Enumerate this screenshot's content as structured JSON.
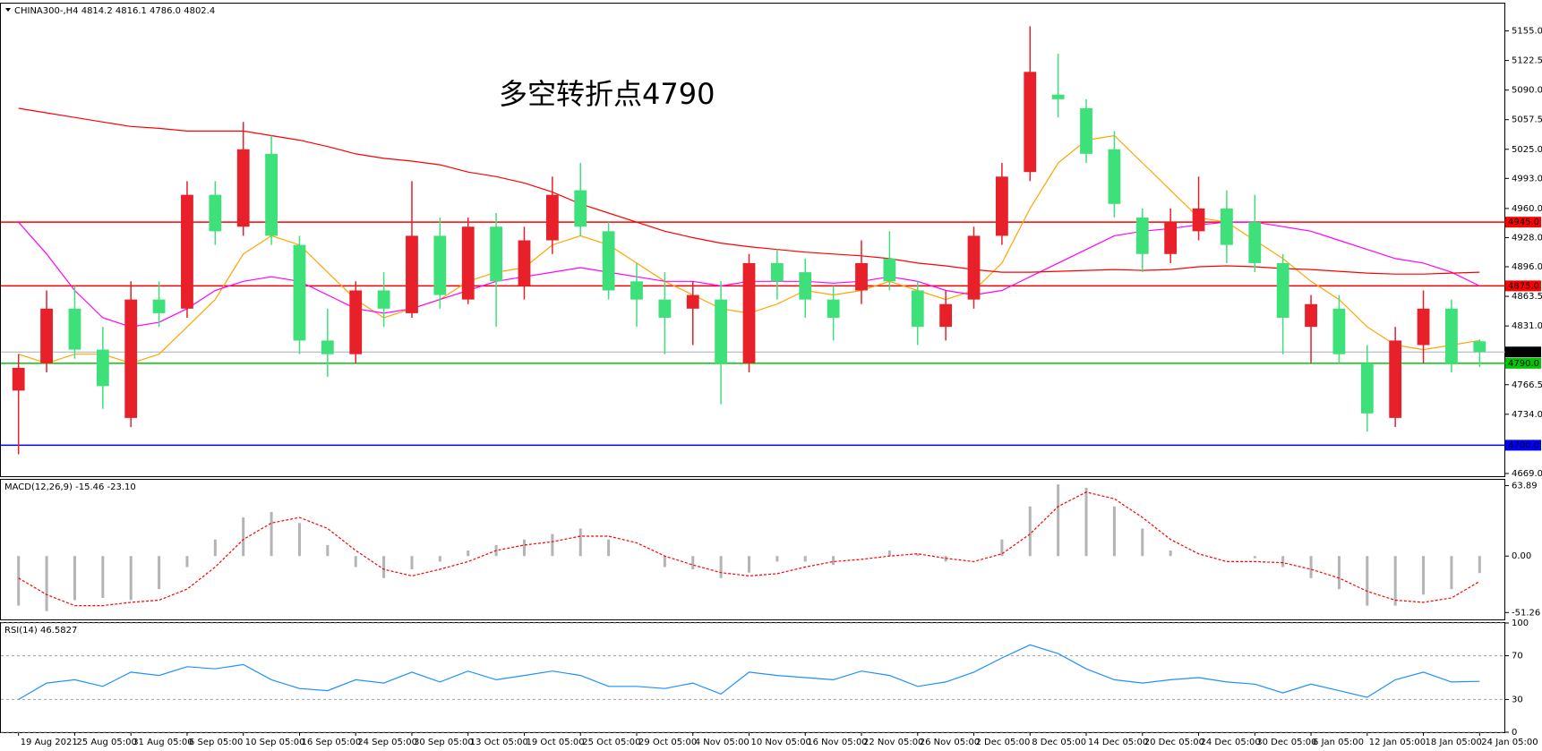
{
  "chart_data": [
    {
      "type": "candlestick",
      "title": "CHINA300-,H4  4814.2 4816.1 4786.0 4802.4",
      "annotation": "多空转折点4790",
      "annotation_color": "#e0201f",
      "up_color": "#e8202a",
      "down_color": "#3ee07a",
      "categories": [
        "19 Aug 2021",
        null,
        "25 Aug 05:00",
        null,
        "31 Aug 05:00",
        null,
        "6 Sep 05:00",
        null,
        "10 Sep 05:00",
        null,
        "16 Sep 05:00",
        null,
        "24 Sep 05:00",
        null,
        "30 Sep 05:00",
        null,
        "13 Oct 05:00",
        null,
        "19 Oct 05:00",
        null,
        "25 Oct 05:00",
        null,
        "29 Oct 05:00",
        null,
        "4 Nov 05:00",
        null,
        "10 Nov 05:00",
        null,
        "16 Nov 05:00",
        null,
        "22 Nov 05:00",
        null,
        "26 Nov 05:00",
        null,
        "2 Dec 05:00",
        null,
        "8 Dec 05:00",
        null,
        "14 Dec 05:00",
        null,
        "20 Dec 05:00",
        null,
        "24 Dec 05:00",
        null,
        "30 Dec 05:00",
        null,
        "6 Jan 05:00",
        null,
        "12 Jan 05:00",
        null,
        "18 Jan 05:00",
        null,
        "24 Jan 05:00"
      ],
      "ohlc": [
        [
          4760,
          4800,
          4690,
          4785
        ],
        [
          4790,
          4870,
          4780,
          4850
        ],
        [
          4850,
          4875,
          4795,
          4805
        ],
        [
          4805,
          4830,
          4740,
          4765
        ],
        [
          4730,
          4880,
          4720,
          4860
        ],
        [
          4860,
          4880,
          4830,
          4845
        ],
        [
          4850,
          4990,
          4840,
          4975
        ],
        [
          4975,
          4990,
          4920,
          4935
        ],
        [
          4940,
          5055,
          4930,
          5025
        ],
        [
          5020,
          5040,
          4920,
          4930
        ],
        [
          4920,
          4930,
          4800,
          4815
        ],
        [
          4815,
          4850,
          4775,
          4800
        ],
        [
          4800,
          4880,
          4790,
          4870
        ],
        [
          4870,
          4890,
          4830,
          4850
        ],
        [
          4845,
          4990,
          4840,
          4930
        ],
        [
          4930,
          4950,
          4850,
          4865
        ],
        [
          4860,
          4950,
          4855,
          4940
        ],
        [
          4940,
          4955,
          4830,
          4880
        ],
        [
          4875,
          4940,
          4860,
          4925
        ],
        [
          4925,
          4995,
          4910,
          4975
        ],
        [
          4980,
          5010,
          4930,
          4940
        ],
        [
          4935,
          4945,
          4860,
          4870
        ],
        [
          4880,
          4900,
          4830,
          4860
        ],
        [
          4860,
          4890,
          4800,
          4840
        ],
        [
          4850,
          4880,
          4810,
          4865
        ],
        [
          4860,
          4880,
          4745,
          4790
        ],
        [
          4790,
          4910,
          4780,
          4900
        ],
        [
          4900,
          4915,
          4860,
          4880
        ],
        [
          4890,
          4905,
          4840,
          4860
        ],
        [
          4860,
          4875,
          4815,
          4840
        ],
        [
          4870,
          4925,
          4855,
          4900
        ],
        [
          4905,
          4935,
          4870,
          4880
        ],
        [
          4870,
          4880,
          4810,
          4830
        ],
        [
          4830,
          4870,
          4815,
          4855
        ],
        [
          4860,
          4940,
          4850,
          4930
        ],
        [
          4930,
          5010,
          4920,
          4995
        ],
        [
          5000,
          5160,
          4990,
          5110
        ],
        [
          5085,
          5130,
          5060,
          5080
        ],
        [
          5070,
          5080,
          5010,
          5020
        ],
        [
          5025,
          5045,
          4950,
          4965
        ],
        [
          4950,
          4960,
          4890,
          4910
        ],
        [
          4910,
          4960,
          4900,
          4945
        ],
        [
          4935,
          4995,
          4925,
          4960
        ],
        [
          4960,
          4980,
          4900,
          4920
        ],
        [
          4945,
          4975,
          4890,
          4900
        ],
        [
          4900,
          4910,
          4800,
          4840
        ],
        [
          4830,
          4865,
          4790,
          4855
        ],
        [
          4850,
          4865,
          4790,
          4800
        ],
        [
          4790,
          4810,
          4715,
          4735
        ],
        [
          4730,
          4830,
          4720,
          4815
        ],
        [
          4810,
          4870,
          4790,
          4850
        ],
        [
          4850,
          4860,
          4780,
          4790
        ],
        [
          4814.2,
          4816.1,
          4786.0,
          4802.4
        ]
      ],
      "series": [
        {
          "color": "#ffa500",
          "values": [
            4800,
            4790,
            4800,
            4800,
            4790,
            4800,
            4830,
            4860,
            4910,
            4930,
            4920,
            4890,
            4860,
            4840,
            4850,
            4860,
            4880,
            4890,
            4895,
            4920,
            4930,
            4920,
            4900,
            4880,
            4865,
            4850,
            4845,
            4855,
            4870,
            4865,
            4870,
            4880,
            4870,
            4860,
            4870,
            4900,
            4960,
            5010,
            5035,
            5040,
            5010,
            4980,
            4950,
            4945,
            4925,
            4905,
            4880,
            4860,
            4830,
            4810,
            4805,
            4810,
            4815
          ]
        },
        {
          "color": "#ff00ff",
          "values": [
            4945,
            4910,
            4870,
            4840,
            4830,
            4835,
            4850,
            4870,
            4880,
            4885,
            4880,
            4865,
            4850,
            4845,
            4850,
            4860,
            4870,
            4880,
            4885,
            4890,
            4895,
            4890,
            4885,
            4880,
            4880,
            4875,
            4880,
            4880,
            4880,
            4878,
            4880,
            4885,
            4880,
            4870,
            4865,
            4870,
            4885,
            4900,
            4915,
            4930,
            4935,
            4938,
            4942,
            4945,
            4945,
            4940,
            4935,
            4925,
            4915,
            4905,
            4900,
            4890,
            4875
          ]
        },
        {
          "color": "#ff0000",
          "values": [
            5070,
            5065,
            5060,
            5055,
            5050,
            5048,
            5045,
            5045,
            5045,
            5040,
            5035,
            5028,
            5020,
            5015,
            5012,
            5008,
            5000,
            4995,
            4988,
            4978,
            4965,
            4955,
            4945,
            4935,
            4928,
            4922,
            4918,
            4915,
            4912,
            4910,
            4908,
            4905,
            4900,
            4897,
            4893,
            4890,
            4890,
            4891,
            4892,
            4893,
            4892,
            4893,
            4896,
            4897,
            4896,
            4894,
            4893,
            4891,
            4889,
            4888,
            4888,
            4889,
            4890
          ]
        }
      ],
      "levels": [
        {
          "value": 4945,
          "label": "4945.0",
          "color": "#ff0000"
        },
        {
          "value": 4875,
          "label": "4875.0",
          "color": "#ff0000"
        },
        {
          "value": 4802.4,
          "label": "4802.4",
          "color": "#a4acb4",
          "label_color": "#000000"
        },
        {
          "value": 4790,
          "label": "4790.0",
          "color": "#00c800"
        },
        {
          "value": 4700,
          "label": "4700.0",
          "color": "#0000ff"
        }
      ],
      "ylim": [
        4666,
        5185
      ],
      "yticks": [
        {
          "value": 5155,
          "label": "5155.0"
        },
        {
          "value": 5122.5,
          "label": "5122.5"
        },
        {
          "value": 5090,
          "label": "5090.0"
        },
        {
          "value": 5057.5,
          "label": "5057.5"
        },
        {
          "value": 5025,
          "label": "5025.0"
        },
        {
          "value": 4993,
          "label": "4993.0"
        },
        {
          "value": 4960,
          "label": "4960.0"
        },
        {
          "value": 4928,
          "label": "4928.0"
        },
        {
          "value": 4896,
          "label": "4896.0"
        },
        {
          "value": 4863.5,
          "label": "4863.5"
        },
        {
          "value": 4831,
          "label": "4831.0"
        },
        {
          "value": 4766.5,
          "label": "4766.5"
        },
        {
          "value": 4734,
          "label": "4734.0"
        },
        {
          "value": 4669,
          "label": "4669.0"
        }
      ]
    },
    {
      "type": "macd",
      "title": "MACD(12,26,9) -15.46 -23.10",
      "series": [
        {
          "style": "bar",
          "color": "#b4b4b4",
          "values": [
            -45,
            -50,
            -40,
            -38,
            -40,
            -30,
            -10,
            15,
            35,
            40,
            30,
            10,
            -10,
            -20,
            -12,
            -5,
            5,
            10,
            15,
            20,
            25,
            15,
            0,
            -10,
            -12,
            -20,
            -15,
            -5,
            -5,
            -8,
            0,
            5,
            2,
            -5,
            0,
            15,
            45,
            65,
            62,
            45,
            25,
            5,
            0,
            0,
            -2,
            -10,
            -20,
            -30,
            -45,
            -45,
            -35,
            -30,
            -15.46
          ]
        },
        {
          "style": "dotted",
          "color": "#ff0000",
          "values": [
            -20,
            -35,
            -45,
            -45,
            -42,
            -40,
            -30,
            -10,
            15,
            30,
            35,
            25,
            5,
            -12,
            -18,
            -12,
            -5,
            5,
            10,
            13,
            18,
            18,
            12,
            0,
            -8,
            -15,
            -18,
            -16,
            -10,
            -5,
            -3,
            0,
            2,
            -2,
            -5,
            2,
            20,
            45,
            58,
            52,
            35,
            15,
            2,
            -5,
            -5,
            -6,
            -12,
            -20,
            -32,
            -40,
            -42,
            -38,
            -23.1
          ]
        }
      ],
      "ylim": [
        -57.5,
        69.2
      ],
      "yticks": [
        63.89,
        {
          "value": 0,
          "label": "0.00"
        },
        -51.26
      ]
    },
    {
      "type": "line",
      "title": "RSI(14) 46.5827",
      "series": [
        {
          "color": "#1e90ff",
          "values": [
            30,
            45,
            48,
            42,
            55,
            52,
            60,
            58,
            62,
            48,
            40,
            38,
            48,
            45,
            55,
            46,
            56,
            48,
            52,
            56,
            52,
            42,
            42,
            40,
            45,
            35,
            55,
            52,
            50,
            48,
            56,
            52,
            42,
            46,
            55,
            68,
            80,
            72,
            58,
            48,
            45,
            48,
            50,
            46,
            44,
            36,
            44,
            38,
            32,
            48,
            55,
            46,
            46.5827
          ]
        }
      ],
      "ylim": [
        0,
        100
      ],
      "yticks": [
        100,
        70,
        30,
        0
      ],
      "grid": true
    }
  ]
}
